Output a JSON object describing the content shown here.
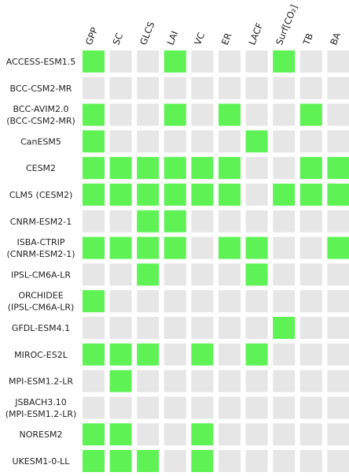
{
  "colors": {
    "on": "#5ff255",
    "off": "#e6e6e6"
  },
  "columns": [
    "GPP",
    "SC",
    "GLCS",
    "LAI",
    "VC",
    "ER",
    "LACF",
    "Surf[CO₂]",
    "TB",
    "BA"
  ],
  "rows": [
    {
      "label": [
        "ACCESS-ESM1.5"
      ],
      "cells": [
        true,
        false,
        false,
        true,
        false,
        false,
        false,
        true,
        false,
        false
      ]
    },
    {
      "label": [
        "BCC-CSM2-MR"
      ],
      "cells": [
        false,
        false,
        false,
        false,
        false,
        false,
        false,
        false,
        false,
        false
      ]
    },
    {
      "label": [
        "BCC-AVIM2.0",
        "(BCC-CSM2-MR)"
      ],
      "cells": [
        true,
        false,
        false,
        true,
        false,
        true,
        false,
        false,
        true,
        false
      ]
    },
    {
      "label": [
        "CanESM5"
      ],
      "cells": [
        true,
        false,
        false,
        false,
        false,
        false,
        true,
        false,
        false,
        false
      ]
    },
    {
      "label": [
        "CESM2"
      ],
      "cells": [
        true,
        true,
        true,
        true,
        true,
        true,
        false,
        false,
        true,
        true
      ]
    },
    {
      "label": [
        "CLM5 (CESM2)"
      ],
      "cells": [
        true,
        true,
        true,
        true,
        true,
        true,
        false,
        true,
        true,
        true
      ]
    },
    {
      "label": [
        "CNRM-ESM2-1"
      ],
      "cells": [
        false,
        false,
        true,
        true,
        false,
        false,
        false,
        false,
        false,
        false
      ]
    },
    {
      "label": [
        "ISBA-CTRIP",
        "(CNRM-ESM2-1)"
      ],
      "cells": [
        true,
        true,
        true,
        true,
        false,
        true,
        true,
        false,
        false,
        true
      ]
    },
    {
      "label": [
        "IPSL-CM6A-LR"
      ],
      "cells": [
        false,
        false,
        true,
        false,
        false,
        false,
        true,
        false,
        false,
        false
      ]
    },
    {
      "label": [
        "ORCHIDEE",
        "(IPSL-CM6A-LR)"
      ],
      "cells": [
        true,
        false,
        false,
        false,
        false,
        false,
        false,
        false,
        false,
        false
      ]
    },
    {
      "label": [
        "GFDL-ESM4.1"
      ],
      "cells": [
        false,
        false,
        false,
        false,
        false,
        false,
        false,
        true,
        false,
        false
      ]
    },
    {
      "label": [
        "MIROC-ES2L"
      ],
      "cells": [
        true,
        true,
        true,
        false,
        true,
        false,
        true,
        false,
        false,
        false
      ]
    },
    {
      "label": [
        "MPI-ESM1.2-LR"
      ],
      "cells": [
        false,
        true,
        false,
        false,
        false,
        false,
        false,
        false,
        false,
        false
      ]
    },
    {
      "label": [
        "JSBACH3.10",
        "(MPI-ESM1.2-LR)"
      ],
      "cells": [
        false,
        false,
        false,
        false,
        false,
        false,
        false,
        false,
        false,
        false
      ]
    },
    {
      "label": [
        "NORESM2"
      ],
      "cells": [
        true,
        true,
        false,
        false,
        true,
        false,
        false,
        false,
        false,
        false
      ]
    },
    {
      "label": [
        "UKESM1-0-LL"
      ],
      "cells": [
        true,
        true,
        true,
        false,
        true,
        false,
        false,
        false,
        false,
        false
      ]
    }
  ]
}
